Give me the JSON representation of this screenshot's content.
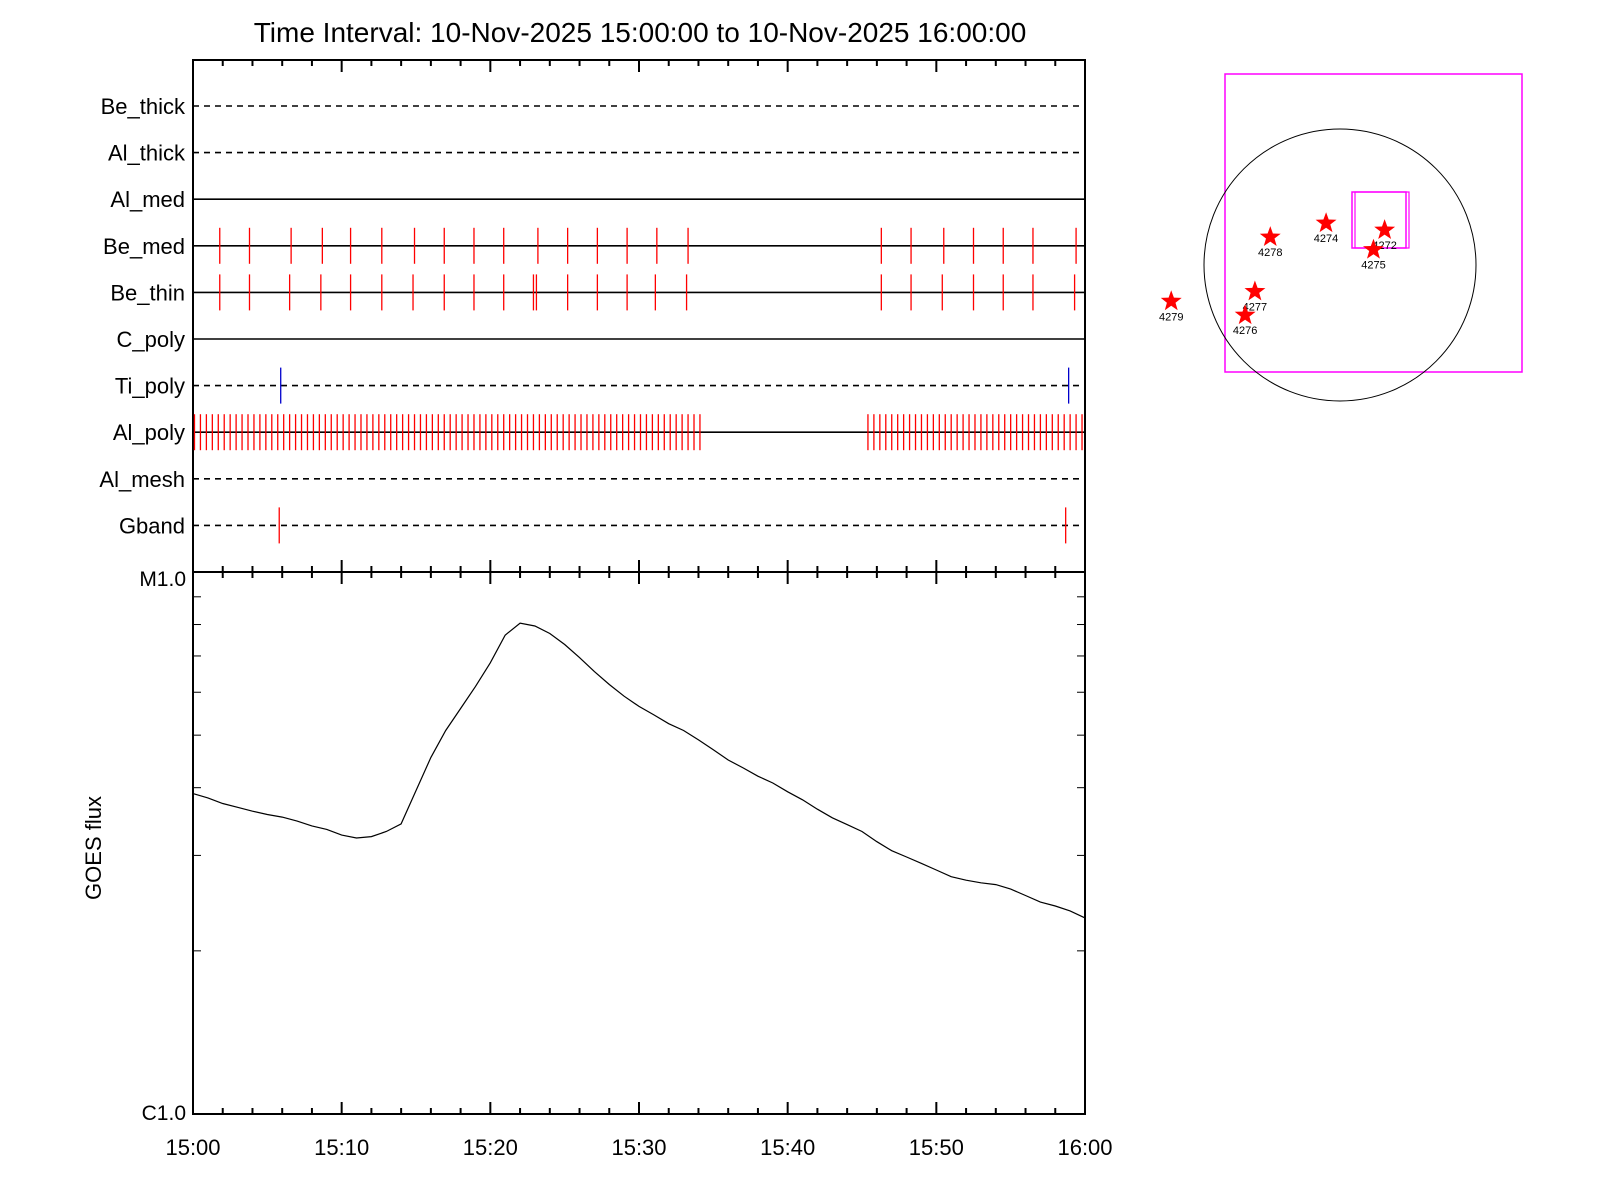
{
  "chart_data": [
    {
      "type": "timeline",
      "title": "Time Interval: 10-Nov-2025 15:00:00 to 10-Nov-2025 16:00:00",
      "x_unit": "minutes after 15:00",
      "xlim": [
        0,
        60
      ],
      "rows": [
        {
          "label": "Be_thick",
          "line": "dashed",
          "events": []
        },
        {
          "label": "Al_thick",
          "line": "dashed",
          "events": []
        },
        {
          "label": "Al_med",
          "line": "solid",
          "events": []
        },
        {
          "label": "Be_med",
          "line": "solid",
          "color": "#ff0000",
          "events": [
            1.8,
            3.8,
            6.6,
            8.7,
            10.6,
            12.7,
            14.9,
            16.9,
            18.9,
            20.9,
            23.2,
            25.2,
            27.2,
            29.2,
            31.2,
            33.3,
            46.3,
            48.3,
            50.5,
            52.5,
            54.5,
            56.5,
            59.4
          ]
        },
        {
          "label": "Be_thin",
          "line": "solid",
          "color": "#ff0000",
          "events": [
            1.8,
            3.8,
            6.5,
            8.6,
            10.6,
            12.7,
            14.8,
            16.9,
            18.9,
            20.9,
            22.9,
            23.1,
            25.2,
            27.2,
            29.2,
            31.1,
            33.2,
            46.3,
            48.3,
            50.4,
            52.5,
            54.5,
            56.5,
            59.3
          ]
        },
        {
          "label": "C_poly",
          "line": "solid",
          "events": []
        },
        {
          "label": "Ti_poly",
          "line": "dashed",
          "color": "#0000cc",
          "events": [
            5.9,
            58.9
          ]
        },
        {
          "label": "Al_poly",
          "line": "solid",
          "color": "#ff0000",
          "events": [
            0.1,
            0.5,
            0.9,
            1.3,
            1.7,
            2.1,
            2.5,
            2.9,
            3.3,
            3.7,
            4.1,
            4.5,
            4.9,
            5.3,
            5.7,
            6.1,
            6.5,
            6.9,
            7.3,
            7.7,
            8.1,
            8.5,
            8.9,
            9.3,
            9.7,
            10.1,
            10.5,
            10.9,
            11.3,
            11.7,
            12.1,
            12.5,
            12.9,
            13.3,
            13.7,
            14.1,
            14.5,
            14.9,
            15.3,
            15.7,
            16.1,
            16.5,
            16.9,
            17.3,
            17.7,
            18.1,
            18.5,
            18.9,
            19.3,
            19.7,
            20.1,
            20.5,
            20.9,
            21.3,
            21.7,
            22.1,
            22.5,
            22.9,
            23.3,
            23.7,
            24.1,
            24.5,
            24.9,
            25.3,
            25.7,
            26.1,
            26.5,
            26.9,
            27.3,
            27.7,
            28.1,
            28.5,
            28.9,
            29.3,
            29.7,
            30.1,
            30.5,
            30.9,
            31.3,
            31.7,
            32.1,
            32.5,
            32.9,
            33.3,
            33.7,
            34.1,
            45.4,
            45.8,
            46.2,
            46.6,
            47.0,
            47.4,
            47.8,
            48.2,
            48.6,
            49.0,
            49.4,
            49.8,
            50.2,
            50.6,
            51.0,
            51.4,
            51.8,
            52.2,
            52.6,
            53.0,
            53.4,
            53.8,
            54.2,
            54.6,
            55.0,
            55.4,
            55.8,
            56.2,
            56.6,
            57.0,
            57.4,
            57.8,
            58.2,
            58.6,
            59.0,
            59.4,
            59.8
          ]
        },
        {
          "label": "Al_mesh",
          "line": "dashed",
          "events": []
        },
        {
          "label": "Gband",
          "line": "dashed",
          "color": "#ff0000",
          "events": [
            5.8,
            58.7
          ]
        }
      ]
    },
    {
      "type": "line",
      "xlabel": "",
      "ylabel": "GOES flux",
      "y_scale": "log",
      "ylim": [
        1e-06,
        1e-05
      ],
      "yticks": [
        {
          "value": 1e-05,
          "label": "M1.0"
        },
        {
          "value": 1e-06,
          "label": "C1.0"
        }
      ],
      "x_unit": "minutes after 15:00",
      "xlim": [
        0,
        60
      ],
      "xtick_labels": [
        "15:00",
        "15:10",
        "15:20",
        "15:30",
        "15:40",
        "15:50",
        "16:00"
      ],
      "x": [
        0,
        1,
        2,
        3,
        4,
        5,
        6,
        7,
        8,
        9,
        10,
        11,
        12,
        13,
        14,
        15,
        16,
        17,
        18,
        19,
        20,
        21,
        22,
        23,
        24,
        25,
        26,
        27,
        28,
        29,
        30,
        31,
        32,
        33,
        34,
        35,
        36,
        37,
        38,
        39,
        40,
        41,
        42,
        43,
        44,
        45,
        46,
        47,
        48,
        49,
        50,
        51,
        52,
        53,
        54,
        55,
        56,
        57,
        58,
        59,
        60
      ],
      "y": [
        3.9e-06,
        3.83e-06,
        3.74e-06,
        3.68e-06,
        3.62e-06,
        3.57e-06,
        3.53e-06,
        3.47e-06,
        3.4e-06,
        3.35e-06,
        3.27e-06,
        3.23e-06,
        3.25e-06,
        3.32e-06,
        3.43e-06,
        3.95e-06,
        4.55e-06,
        5.1e-06,
        5.6e-06,
        6.15e-06,
        6.8e-06,
        7.65e-06,
        8.05e-06,
        7.95e-06,
        7.7e-06,
        7.35e-06,
        6.95e-06,
        6.55e-06,
        6.2e-06,
        5.9e-06,
        5.65e-06,
        5.45e-06,
        5.25e-06,
        5.1e-06,
        4.9e-06,
        4.7e-06,
        4.5e-06,
        4.35e-06,
        4.2e-06,
        4.08e-06,
        3.93e-06,
        3.8e-06,
        3.65e-06,
        3.52e-06,
        3.42e-06,
        3.32e-06,
        3.18e-06,
        3.06e-06,
        2.98e-06,
        2.9e-06,
        2.82e-06,
        2.74e-06,
        2.7e-06,
        2.67e-06,
        2.65e-06,
        2.6e-06,
        2.53e-06,
        2.46e-06,
        2.42e-06,
        2.37e-06,
        2.3e-06
      ]
    },
    {
      "type": "sun_map",
      "regions": [
        {
          "label": "4274",
          "x": -100,
          "y": 300
        },
        {
          "label": "4272",
          "x": 320,
          "y": 250
        },
        {
          "label": "4278",
          "x": -500,
          "y": 200
        },
        {
          "label": "4275",
          "x": 240,
          "y": 110
        },
        {
          "label": "4277",
          "x": -610,
          "y": -190
        },
        {
          "label": "4276",
          "x": -680,
          "y": -360
        },
        {
          "label": "4279",
          "x": -1210,
          "y": -260
        }
      ]
    }
  ],
  "colors": {
    "event_red": "#ff0000",
    "event_blue": "#0000cc",
    "fov_box": "#ff00ff",
    "axes": "#000000"
  }
}
